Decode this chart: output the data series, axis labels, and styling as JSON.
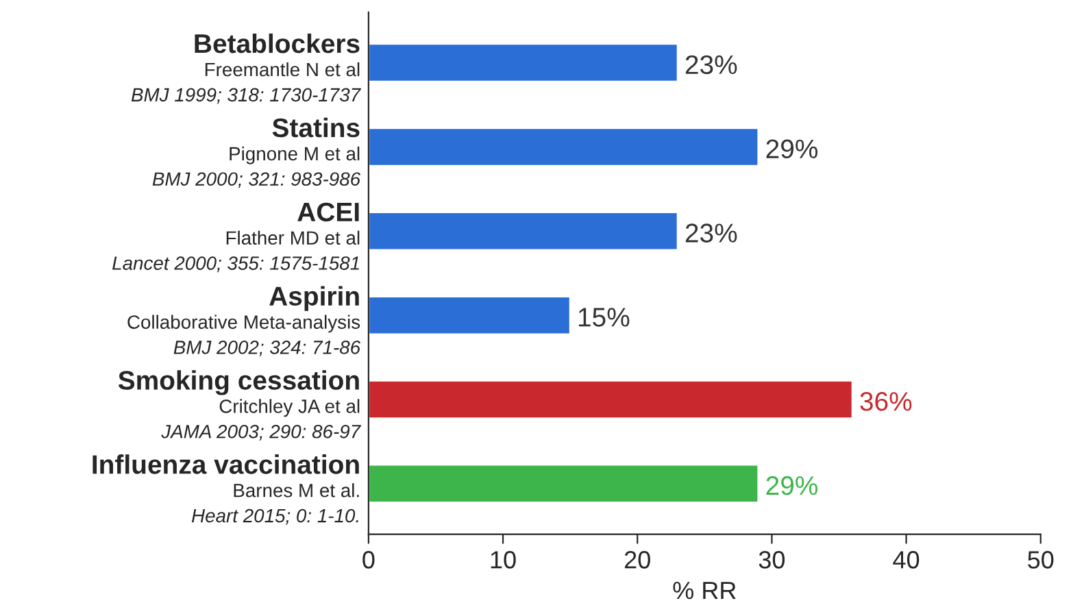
{
  "chart_data": {
    "type": "bar",
    "orientation": "horizontal",
    "categories": [
      "Betablockers\nFreemantle N et al\nBMJ 1999; 318: 1730-1737",
      "Statins\nPignone M et al\nBMJ 2000; 321: 983-986",
      "ACEI\nFlather MD et al\nLancet 2000; 355: 1575-1581",
      "Aspirin\nCollaborative Meta-analysis\nBMJ 2002; 324: 71-86",
      "Smoking cessation\nCritchley JA et al\nJAMA 2003; 290: 86-97",
      "Influenza vaccination\nBarnes M et al.\nHeart 2015; 0: 1-10."
    ],
    "values": [
      23,
      29,
      23,
      15,
      36,
      29
    ],
    "colors": [
      "#2b6fd6",
      "#2b6fd6",
      "#2b6fd6",
      "#2b6fd6",
      "#c8282e",
      "#3db54a"
    ],
    "value_labels": [
      "23%",
      "29%",
      "23%",
      "15%",
      "36%",
      "29%"
    ],
    "xlim": [
      0,
      50
    ],
    "xticks": [
      0,
      10,
      20,
      30,
      40,
      50
    ],
    "xlabel": "% RR",
    "grid": false,
    "legend": false
  }
}
